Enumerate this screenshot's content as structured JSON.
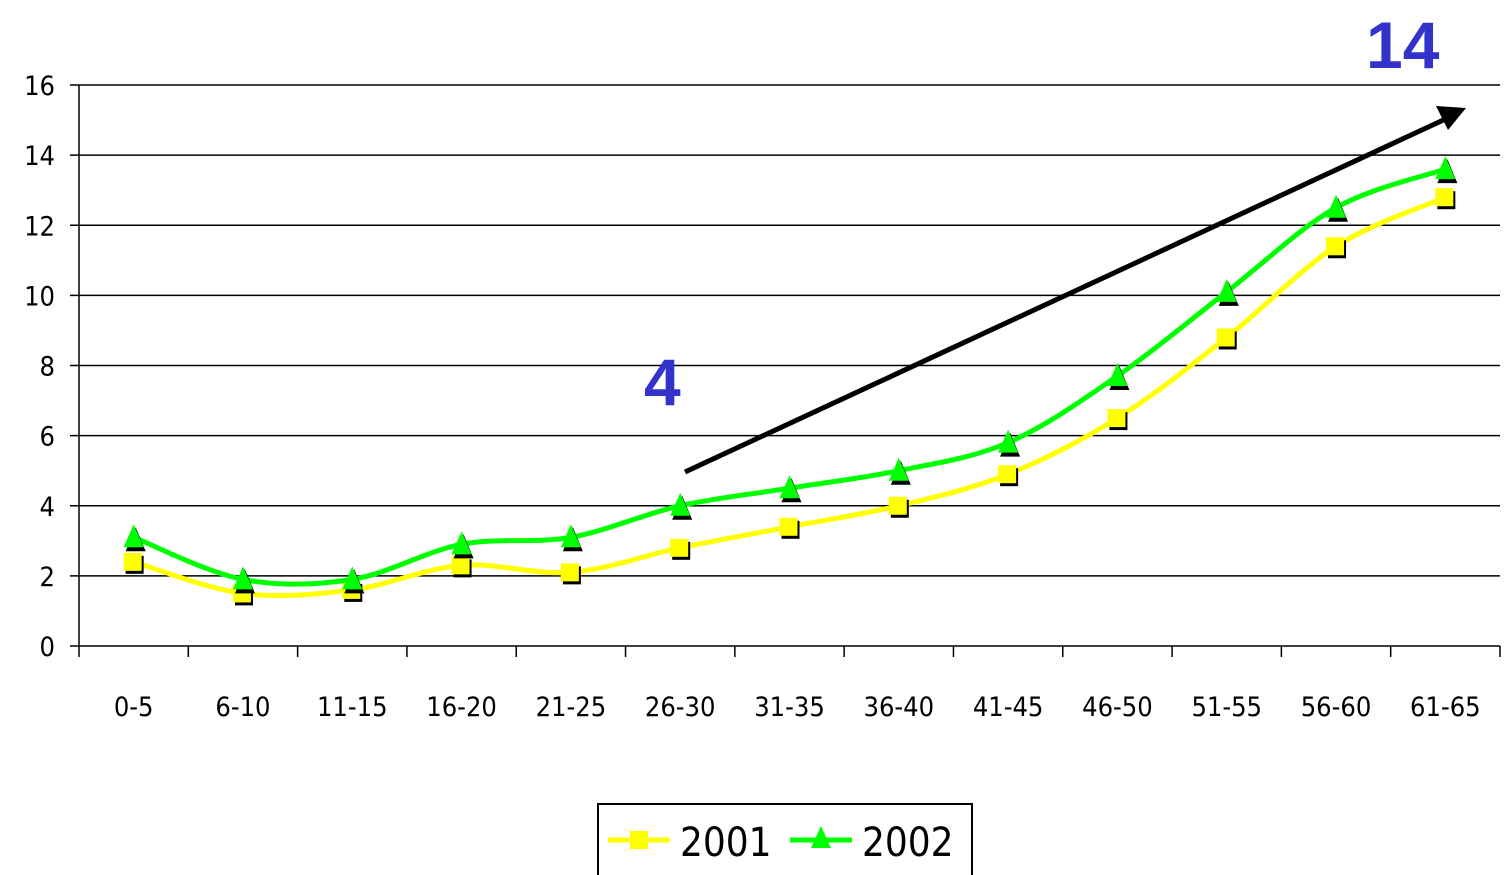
{
  "chart_data": {
    "type": "line",
    "categories": [
      "0-5",
      "6-10",
      "11-15",
      "16-20",
      "21-25",
      "26-30",
      "31-35",
      "36-40",
      "41-45",
      "46-50",
      "51-55",
      "56-60",
      "61-65"
    ],
    "yticks": [
      "0",
      "2",
      "4",
      "6",
      "8",
      "10",
      "12",
      "14",
      "16"
    ],
    "ylim": [
      0,
      16
    ],
    "grid": true,
    "series": [
      {
        "name": "2001",
        "color": "#ffff00",
        "marker": "square",
        "values": [
          2.4,
          1.5,
          1.6,
          2.3,
          2.1,
          2.8,
          3.4,
          4.0,
          4.9,
          6.5,
          8.8,
          11.4,
          12.8
        ]
      },
      {
        "name": "2002",
        "color": "#00ff00",
        "marker": "triangle",
        "values": [
          3.1,
          1.9,
          1.9,
          2.9,
          3.1,
          4.0,
          4.5,
          5.0,
          5.8,
          7.7,
          10.1,
          12.5,
          13.6
        ]
      }
    ],
    "legend": "bottom-center",
    "annotations": [
      {
        "text": "4"
      },
      {
        "text": "14"
      }
    ]
  }
}
